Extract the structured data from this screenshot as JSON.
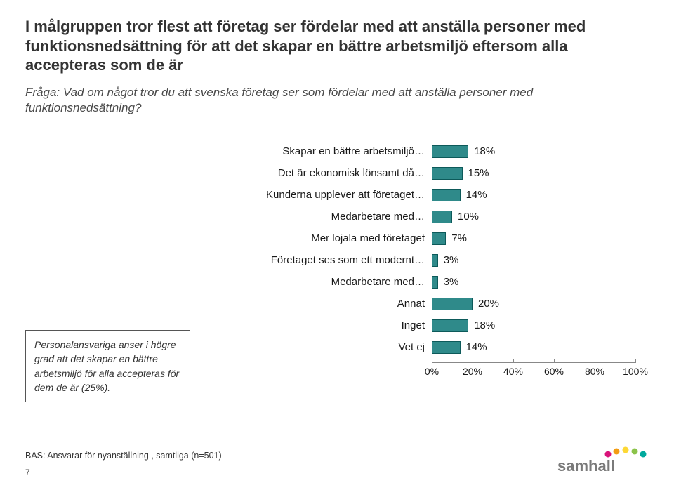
{
  "title": "I målgruppen tror flest att företag ser fördelar med att anställa personer med funktionsnedsättning för att det skapar en bättre arbetsmiljö eftersom alla accepteras som de är",
  "question": "Fråga: Vad om något tror du att svenska företag ser som fördelar med att anställa personer med funktionsnedsättning?",
  "chart": {
    "type": "bar-horizontal",
    "bar_color": "#2f8a8a",
    "bar_border": "#0d5a5a",
    "text_color": "#1a1a1a",
    "label_fontsize": 15,
    "value_fontsize": 15,
    "xlim": [
      0,
      100
    ],
    "xtick_step": 20,
    "xticks": [
      "0%",
      "20%",
      "40%",
      "60%",
      "80%",
      "100%"
    ],
    "categories": [
      {
        "label": "Skapar en bättre arbetsmiljö…",
        "value": 18,
        "display": "18%"
      },
      {
        "label": "Det är ekonomisk lönsamt då…",
        "value": 15,
        "display": "15%"
      },
      {
        "label": "Kunderna upplever att företaget…",
        "value": 14,
        "display": "14%"
      },
      {
        "label": "Medarbetare med…",
        "value": 10,
        "display": "10%"
      },
      {
        "label": "Mer lojala med företaget",
        "value": 7,
        "display": "7%"
      },
      {
        "label": "Företaget ses som ett modernt…",
        "value": 3,
        "display": "3%"
      },
      {
        "label": "Medarbetare med…",
        "value": 3,
        "display": "3%"
      },
      {
        "label": "Annat",
        "value": 20,
        "display": "20%"
      },
      {
        "label": "Inget",
        "value": 18,
        "display": "18%"
      },
      {
        "label": "Vet ej",
        "value": 14,
        "display": "14%"
      }
    ]
  },
  "note": {
    "lead": "Personalansvariga",
    "rest": " anser i högre grad att det skapar en bättre arbetsmiljö för alla accepteras för dem de är (25%)."
  },
  "base": "BAS: Ansvarar för nyanställning , samtliga (n=501)",
  "page_number": "7",
  "logo": {
    "text": "samhall",
    "text_color": "#7a7a7a",
    "dot_colors": [
      "#d9137a",
      "#f39c12",
      "#fdd835",
      "#8bc34a",
      "#00a99d"
    ]
  }
}
